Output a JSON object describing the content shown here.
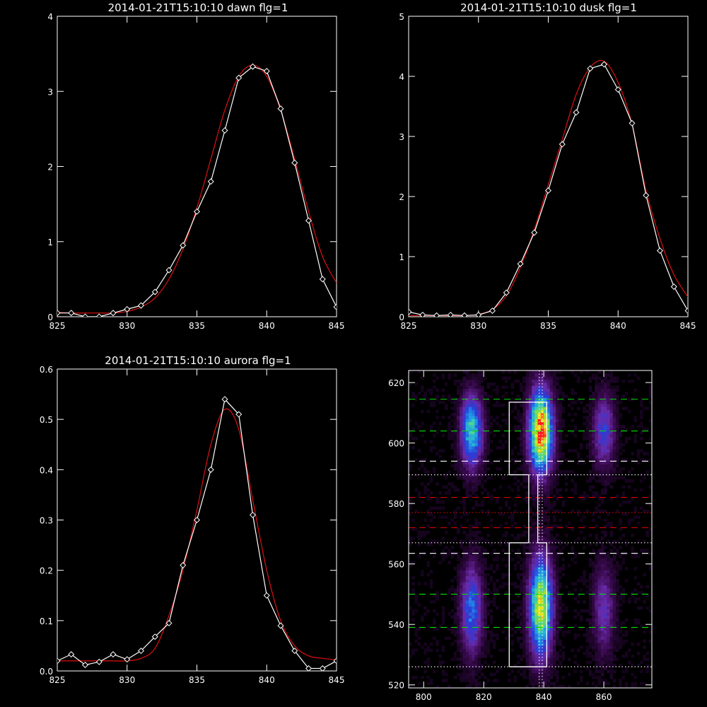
{
  "chart_data": [
    {
      "type": "line",
      "title": "2014-01-21T15:10:10 dawn flg=1",
      "xlim": [
        825,
        845
      ],
      "ylim": [
        0,
        4
      ],
      "xticks": [
        825,
        830,
        835,
        840,
        845
      ],
      "yticks": [
        0,
        1,
        2,
        3,
        4
      ],
      "series": [
        {
          "color": "#ffffff",
          "marker": "diamond",
          "x": [
            825,
            826,
            827,
            828,
            829,
            830,
            831,
            832,
            833,
            834,
            835,
            836,
            837,
            838,
            839,
            840,
            841,
            842,
            843,
            844,
            845
          ],
          "y": [
            0.05,
            0.05,
            0.0,
            0.0,
            0.05,
            0.1,
            0.15,
            0.33,
            0.62,
            0.95,
            1.4,
            1.8,
            2.48,
            3.18,
            3.33,
            3.27,
            2.77,
            2.05,
            1.28,
            0.5,
            0.13
          ]
        },
        {
          "color": "#dd1111",
          "marker": "none",
          "x": [
            825,
            826,
            827,
            828,
            829,
            830,
            831,
            832,
            833,
            834,
            835,
            836,
            837,
            838,
            839,
            840,
            841,
            842,
            843,
            844,
            845
          ],
          "y": [
            0.06,
            0.05,
            0.05,
            0.05,
            0.05,
            0.07,
            0.13,
            0.25,
            0.5,
            0.9,
            1.45,
            2.1,
            2.75,
            3.2,
            3.35,
            3.2,
            2.75,
            2.1,
            1.4,
            0.8,
            0.45
          ]
        }
      ]
    },
    {
      "type": "line",
      "title": "2014-01-21T15:10:10 dusk flg=1",
      "xlim": [
        825,
        845
      ],
      "ylim": [
        0,
        5
      ],
      "xticks": [
        825,
        830,
        835,
        840,
        845
      ],
      "yticks": [
        0,
        1,
        2,
        3,
        4,
        5
      ],
      "series": [
        {
          "color": "#ffffff",
          "marker": "diamond",
          "x": [
            825,
            826,
            827,
            828,
            829,
            830,
            831,
            832,
            833,
            834,
            835,
            836,
            837,
            838,
            839,
            840,
            841,
            842,
            843,
            844,
            845
          ],
          "y": [
            0.08,
            0.03,
            0.02,
            0.03,
            0.02,
            0.03,
            0.1,
            0.4,
            0.88,
            1.4,
            2.1,
            2.87,
            3.4,
            4.13,
            4.2,
            3.78,
            3.22,
            2.02,
            1.1,
            0.5,
            0.1
          ]
        },
        {
          "color": "#dd1111",
          "marker": "none",
          "x": [
            825,
            826,
            827,
            828,
            829,
            830,
            831,
            832,
            833,
            834,
            835,
            836,
            837,
            838,
            839,
            840,
            841,
            842,
            843,
            844,
            845
          ],
          "y": [
            0.02,
            0.02,
            0.02,
            0.02,
            0.02,
            0.04,
            0.12,
            0.35,
            0.82,
            1.45,
            2.2,
            2.95,
            3.7,
            4.15,
            4.25,
            3.9,
            3.2,
            2.1,
            1.3,
            0.7,
            0.33
          ]
        }
      ]
    },
    {
      "type": "line",
      "title": "2014-01-21T15:10:10 aurora flg=1",
      "xlim": [
        825,
        845
      ],
      "ylim": [
        0,
        0.6
      ],
      "xticks": [
        825,
        830,
        835,
        840,
        845
      ],
      "yticks": [
        0,
        0.1,
        0.2,
        0.3,
        0.4,
        0.5,
        0.6
      ],
      "ytick_labels": [
        "0.0",
        "0.1",
        "0.2",
        "0.3",
        "0.4",
        "0.5",
        "0.6"
      ],
      "series": [
        {
          "color": "#ffffff",
          "marker": "diamond",
          "x": [
            825,
            826,
            827,
            828,
            829,
            830,
            831,
            832,
            833,
            834,
            835,
            836,
            837,
            838,
            839,
            840,
            841,
            842,
            843,
            844,
            845
          ],
          "y": [
            0.02,
            0.033,
            0.012,
            0.018,
            0.033,
            0.023,
            0.04,
            0.068,
            0.095,
            0.21,
            0.3,
            0.4,
            0.54,
            0.51,
            0.31,
            0.15,
            0.09,
            0.04,
            0.005,
            0.005,
            0.02
          ]
        },
        {
          "color": "#dd1111",
          "marker": "none",
          "x": [
            825,
            826,
            827,
            828,
            829,
            830,
            831,
            832,
            833,
            834,
            835,
            836,
            837,
            838,
            839,
            840,
            841,
            842,
            843,
            844,
            845
          ],
          "y": [
            0.02,
            0.02,
            0.02,
            0.02,
            0.02,
            0.02,
            0.025,
            0.045,
            0.11,
            0.2,
            0.32,
            0.45,
            0.52,
            0.48,
            0.34,
            0.2,
            0.1,
            0.05,
            0.03,
            0.025,
            0.022
          ]
        }
      ]
    },
    {
      "type": "heatmap",
      "xlim": [
        795,
        876
      ],
      "ylim": [
        519,
        624
      ],
      "xticks": [
        800,
        820,
        840,
        860
      ],
      "yticks": [
        520,
        540,
        560,
        580,
        600,
        620
      ],
      "colormap": [
        "#000000",
        "#3a0a50",
        "#6a2aa8",
        "#2a3cd8",
        "#1e9be8",
        "#3ad0b0",
        "#9ee01e",
        "#f0e81e",
        "#ff1a1a"
      ],
      "blobs": [
        {
          "x": 816,
          "y": 604,
          "sx": 2.4,
          "sy": 8,
          "amp": 0.6
        },
        {
          "x": 839,
          "y": 604,
          "sx": 2.6,
          "sy": 9,
          "amp": 1.0
        },
        {
          "x": 860,
          "y": 604,
          "sx": 2.4,
          "sy": 8,
          "amp": 0.33
        },
        {
          "x": 816,
          "y": 545,
          "sx": 2.4,
          "sy": 10,
          "amp": 0.42
        },
        {
          "x": 839,
          "y": 546,
          "sx": 2.6,
          "sy": 11,
          "amp": 0.8
        },
        {
          "x": 860,
          "y": 545,
          "sx": 2.4,
          "sy": 10,
          "amp": 0.25
        }
      ],
      "hlines": [
        {
          "y": 614.5,
          "color": "#00dd00",
          "style": "dash"
        },
        {
          "y": 604,
          "color": "#00dd00",
          "style": "dash"
        },
        {
          "y": 594,
          "color": "#ffffff",
          "style": "dash"
        },
        {
          "y": 589.5,
          "color": "#ffffff",
          "style": "dot"
        },
        {
          "y": 582,
          "color": "#dd0000",
          "style": "dash"
        },
        {
          "y": 577,
          "color": "#dd0000",
          "style": "dot"
        },
        {
          "y": 572,
          "color": "#dd0000",
          "style": "dash"
        },
        {
          "y": 567,
          "color": "#ffffff",
          "style": "dot"
        },
        {
          "y": 563.5,
          "color": "#ffffff",
          "style": "dash"
        },
        {
          "y": 550,
          "color": "#00dd00",
          "style": "dash"
        },
        {
          "y": 539,
          "color": "#00dd00",
          "style": "dash"
        },
        {
          "y": 526,
          "color": "#ffffff",
          "style": "dot"
        }
      ],
      "vlines": [
        {
          "x": 838.5,
          "color": "#ffffff",
          "style": "dot"
        },
        {
          "x": 839.5,
          "color": "#ffffff",
          "style": "dot"
        }
      ],
      "outline": [
        [
          828.5,
          526
        ],
        [
          841,
          526
        ],
        [
          841,
          567
        ],
        [
          838,
          567
        ],
        [
          838,
          589.5
        ],
        [
          841,
          589.5
        ],
        [
          841,
          613.5
        ],
        [
          828.5,
          613.5
        ],
        [
          828.5,
          589.5
        ],
        [
          835,
          589.5
        ],
        [
          835,
          567
        ],
        [
          828.5,
          567
        ],
        [
          828.5,
          526
        ]
      ]
    }
  ]
}
